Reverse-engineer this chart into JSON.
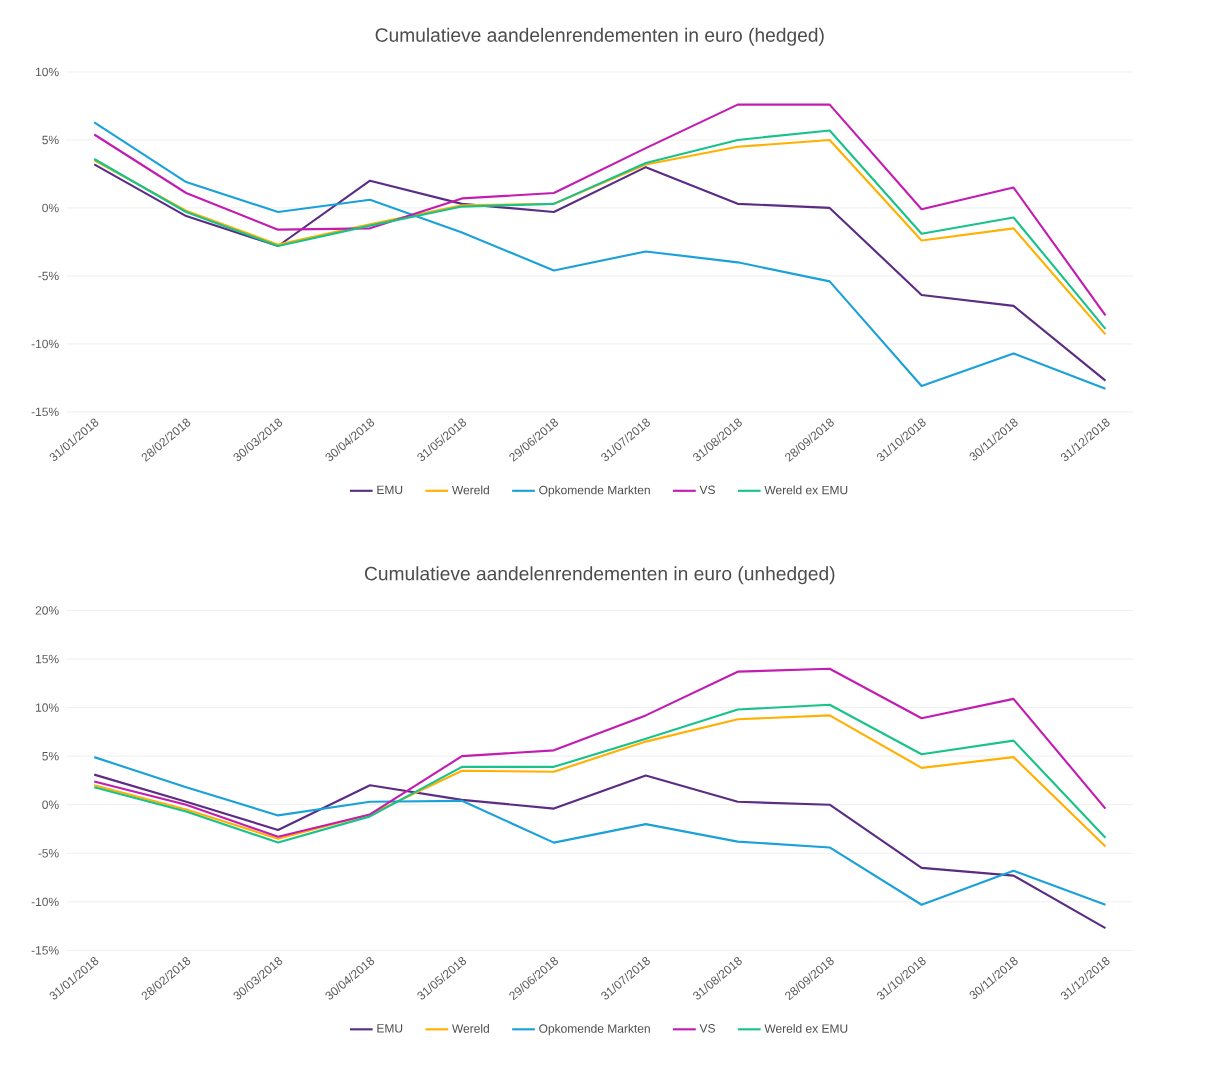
{
  "chart_data": [
    {
      "type": "line",
      "title": "Cumulatieve aandelenrendementen in euro (hedged)",
      "categories": [
        "31/01/2018",
        "28/02/2018",
        "30/03/2018",
        "30/04/2018",
        "31/05/2018",
        "29/06/2018",
        "31/07/2018",
        "31/08/2018",
        "28/09/2018",
        "31/10/2018",
        "30/11/2018",
        "31/12/2018"
      ],
      "series": [
        {
          "name": "EMU",
          "color": "#5b2c83",
          "values": [
            3.2,
            -0.6,
            -2.8,
            2.0,
            0.3,
            -0.3,
            3.0,
            0.3,
            0.0,
            -6.4,
            -7.2,
            -12.7
          ]
        },
        {
          "name": "Wereld",
          "color": "#ffb000",
          "values": [
            3.5,
            -0.2,
            -2.7,
            -1.2,
            0.2,
            0.3,
            3.2,
            4.5,
            5.0,
            -2.4,
            -1.5,
            -9.3
          ]
        },
        {
          "name": "Opkomende Markten",
          "color": "#1ba1d9",
          "values": [
            6.3,
            1.9,
            -0.3,
            0.6,
            -1.8,
            -4.6,
            -3.2,
            -4.0,
            -5.4,
            -13.1,
            -10.7,
            -13.3
          ]
        },
        {
          "name": "VS",
          "color": "#c21cb0",
          "values": [
            5.4,
            1.1,
            -1.6,
            -1.5,
            0.7,
            1.1,
            4.4,
            7.6,
            7.6,
            -0.1,
            1.5,
            -7.9
          ]
        },
        {
          "name": "Wereld ex EMU",
          "color": "#19c28a",
          "values": [
            3.6,
            -0.3,
            -2.8,
            -1.3,
            0.1,
            0.3,
            3.3,
            5.0,
            5.7,
            -1.9,
            -0.7,
            -8.9
          ]
        }
      ],
      "ylim": [
        -15,
        10
      ],
      "yticks": [
        {
          "value": -15,
          "label": "-15%"
        },
        {
          "value": -10,
          "label": "-10%"
        },
        {
          "value": -5,
          "label": "-5%"
        },
        {
          "value": 0,
          "label": "0%"
        },
        {
          "value": 5,
          "label": "5%"
        },
        {
          "value": 10,
          "label": "10%"
        }
      ],
      "grid": "y",
      "legend": "bottom",
      "marker": "none",
      "line_style": "solid"
    },
    {
      "type": "line",
      "title": "Cumulatieve aandelenrendementen in euro (unhedged)",
      "categories": [
        "31/01/2018",
        "28/02/2018",
        "30/03/2018",
        "30/04/2018",
        "31/05/2018",
        "29/06/2018",
        "31/07/2018",
        "31/08/2018",
        "28/09/2018",
        "31/10/2018",
        "30/11/2018",
        "31/12/2018"
      ],
      "series": [
        {
          "name": "EMU",
          "color": "#5b2c83",
          "values": [
            3.1,
            0.3,
            -2.6,
            2.0,
            0.5,
            -0.4,
            3.0,
            0.3,
            0.0,
            -6.5,
            -7.3,
            -12.7
          ]
        },
        {
          "name": "Wereld",
          "color": "#ffb000",
          "values": [
            2.0,
            -0.5,
            -3.5,
            -1.0,
            3.5,
            3.4,
            6.5,
            8.8,
            9.2,
            3.8,
            4.9,
            -4.3
          ]
        },
        {
          "name": "Opkomende Markten",
          "color": "#1ba1d9",
          "values": [
            4.9,
            1.8,
            -1.1,
            0.3,
            0.4,
            -3.9,
            -2.0,
            -3.8,
            -4.4,
            -10.3,
            -6.8,
            -10.3
          ]
        },
        {
          "name": "VS",
          "color": "#c21cb0",
          "values": [
            2.4,
            0.0,
            -3.3,
            -1.0,
            5.0,
            5.6,
            9.2,
            13.7,
            14.0,
            8.9,
            10.9,
            -0.4
          ]
        },
        {
          "name": "Wereld ex EMU",
          "color": "#19c28a",
          "values": [
            1.8,
            -0.7,
            -3.9,
            -1.2,
            3.9,
            3.9,
            6.8,
            9.8,
            10.3,
            5.2,
            6.6,
            -3.4
          ]
        }
      ],
      "ylim": [
        -15,
        20
      ],
      "yticks": [
        {
          "value": -15,
          "label": "-15%"
        },
        {
          "value": -10,
          "label": "-10%"
        },
        {
          "value": -5,
          "label": "-5%"
        },
        {
          "value": 0,
          "label": "0%"
        },
        {
          "value": 5,
          "label": "5%"
        },
        {
          "value": 10,
          "label": "10%"
        },
        {
          "value": 15,
          "label": "15%"
        },
        {
          "value": 20,
          "label": "20%"
        }
      ],
      "grid": "y",
      "legend": "bottom",
      "marker": "none",
      "line_style": "solid"
    }
  ]
}
